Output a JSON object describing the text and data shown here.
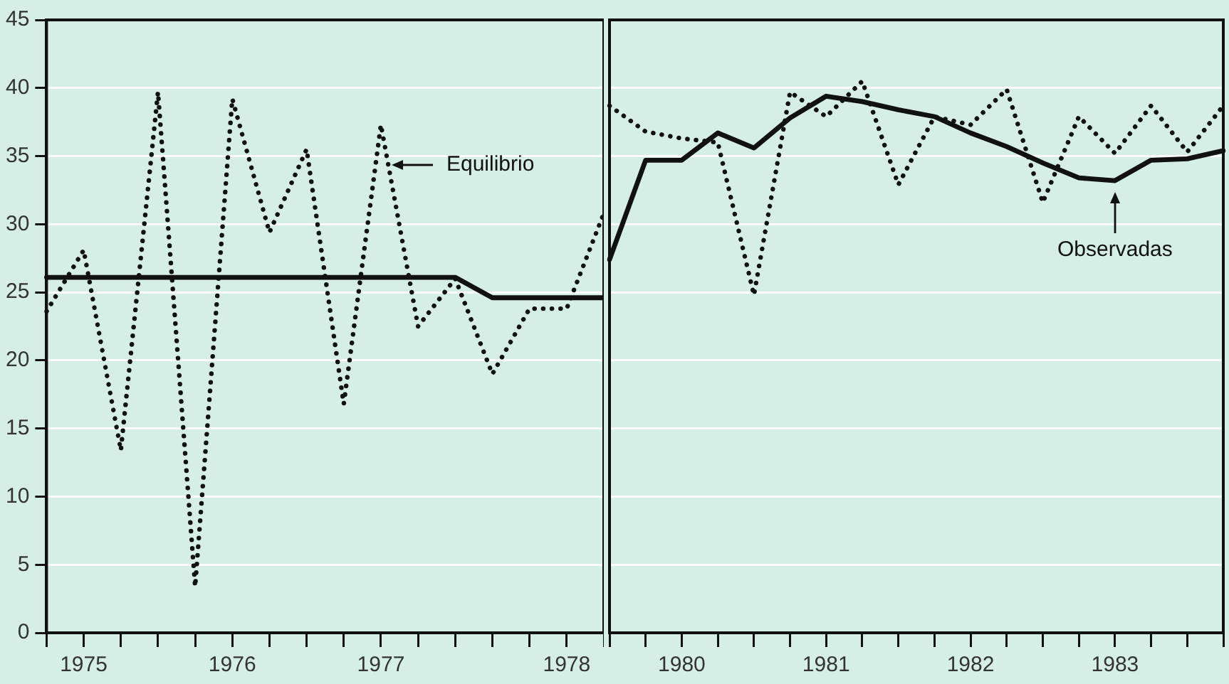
{
  "chart_data": [
    {
      "type": "line",
      "categories": [
        null,
        "1975",
        null,
        null,
        null,
        "1976",
        null,
        null,
        null,
        "1977",
        null,
        null,
        null,
        null,
        "1978",
        null
      ],
      "ylim": [
        0,
        45
      ],
      "yticks": [
        0,
        5,
        10,
        15,
        20,
        25,
        30,
        35,
        40,
        45
      ],
      "grid": "y",
      "legend": "top",
      "marker": "none",
      "series": [
        {
          "name": "Equilibrio",
          "color": "#111111",
          "line_style": "dotted",
          "values": [
            23.6,
            28.1,
            13.4,
            39.7,
            3.4,
            39.2,
            29.4,
            35.5,
            16.8,
            37.3,
            22.5,
            26,
            19,
            23.8,
            23.8,
            30.8
          ]
        },
        {
          "color": "#111111",
          "line_style": "solid",
          "values": [
            26.1,
            26.1,
            26.1,
            26.1,
            26.1,
            26.1,
            26.1,
            26.1,
            26.1,
            26.1,
            26.1,
            26.1,
            24.6,
            24.6,
            24.6,
            24.6
          ]
        }
      ]
    },
    {
      "type": "line",
      "categories": [
        null,
        null,
        "1980",
        null,
        null,
        null,
        "1981",
        null,
        null,
        null,
        "1982",
        null,
        null,
        null,
        "1983",
        null,
        null,
        null
      ],
      "ylim": [
        0,
        45
      ],
      "yticks": [
        0,
        5,
        10,
        15,
        20,
        25,
        30,
        35,
        40,
        45
      ],
      "tick_labels": "x",
      "grid": "y",
      "legend": "right",
      "marker": "none",
      "series": [
        {
          "color": "#111111",
          "line_style": "dotted",
          "values": [
            38.7,
            36.8,
            36.3,
            36,
            24.8,
            39.7,
            37.9,
            40.5,
            32.9,
            37.9,
            37.3,
            39.9,
            31.6,
            37.9,
            35.2,
            38.7,
            35.3,
            38.7
          ]
        },
        {
          "name": "Observadas",
          "color": "#111111",
          "line_style": "solid",
          "values": [
            27.4,
            34.7,
            34.7,
            36.7,
            35.6,
            37.8,
            39.4,
            39,
            38.4,
            37.9,
            36.7,
            35.7,
            34.5,
            33.4,
            33.2,
            34.7,
            34.8,
            35.4
          ]
        }
      ]
    }
  ]
}
